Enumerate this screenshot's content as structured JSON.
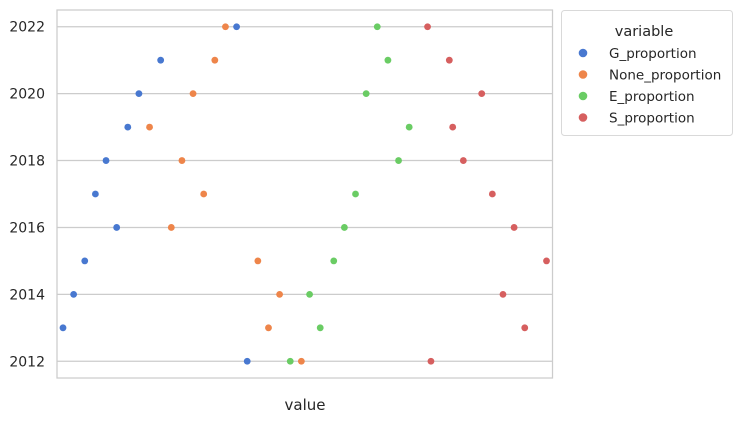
{
  "chart_data": {
    "type": "scatter",
    "xlabel": "value",
    "ylabel": "",
    "x_ticks_visible": false,
    "ylim": [
      2011.5,
      2022.5
    ],
    "yticks": [
      2012,
      2014,
      2016,
      2018,
      2020,
      2022
    ],
    "grid": "horizontal",
    "legend": {
      "title": "variable",
      "placement": "outside-top-right"
    },
    "series": [
      {
        "name": "G_proportion",
        "color": "#4878d0",
        "points": [
          {
            "x": 0.0,
            "y": 2013
          },
          {
            "x": 0.022,
            "y": 2014
          },
          {
            "x": 0.045,
            "y": 2015
          },
          {
            "x": 0.111,
            "y": 2016
          },
          {
            "x": 0.067,
            "y": 2017
          },
          {
            "x": 0.089,
            "y": 2018
          },
          {
            "x": 0.134,
            "y": 2019
          },
          {
            "x": 0.157,
            "y": 2020
          },
          {
            "x": 0.202,
            "y": 2021
          },
          {
            "x": 0.359,
            "y": 2022
          },
          {
            "x": 0.381,
            "y": 2012
          }
        ]
      },
      {
        "name": "None_proportion",
        "color": "#ee854a",
        "points": [
          {
            "x": 0.425,
            "y": 2013
          },
          {
            "x": 0.448,
            "y": 2014
          },
          {
            "x": 0.403,
            "y": 2015
          },
          {
            "x": 0.224,
            "y": 2016
          },
          {
            "x": 0.291,
            "y": 2017
          },
          {
            "x": 0.246,
            "y": 2018
          },
          {
            "x": 0.179,
            "y": 2019
          },
          {
            "x": 0.269,
            "y": 2020
          },
          {
            "x": 0.314,
            "y": 2021
          },
          {
            "x": 0.336,
            "y": 2022
          },
          {
            "x": 0.493,
            "y": 2012
          }
        ]
      },
      {
        "name": "E_proportion",
        "color": "#6acc64",
        "points": [
          {
            "x": 0.532,
            "y": 2013
          },
          {
            "x": 0.51,
            "y": 2014
          },
          {
            "x": 0.56,
            "y": 2015
          },
          {
            "x": 0.582,
            "y": 2016
          },
          {
            "x": 0.605,
            "y": 2017
          },
          {
            "x": 0.694,
            "y": 2018
          },
          {
            "x": 0.716,
            "y": 2019
          },
          {
            "x": 0.627,
            "y": 2020
          },
          {
            "x": 0.672,
            "y": 2021
          },
          {
            "x": 0.65,
            "y": 2022
          },
          {
            "x": 0.47,
            "y": 2012
          }
        ]
      },
      {
        "name": "S_proportion",
        "color": "#d65f5f",
        "points": [
          {
            "x": 0.955,
            "y": 2013
          },
          {
            "x": 0.91,
            "y": 2014
          },
          {
            "x": 1.0,
            "y": 2015
          },
          {
            "x": 0.933,
            "y": 2016
          },
          {
            "x": 0.888,
            "y": 2017
          },
          {
            "x": 0.828,
            "y": 2018
          },
          {
            "x": 0.806,
            "y": 2019
          },
          {
            "x": 0.866,
            "y": 2020
          },
          {
            "x": 0.799,
            "y": 2021
          },
          {
            "x": 0.754,
            "y": 2022
          },
          {
            "x": 0.761,
            "y": 2012
          }
        ]
      }
    ]
  }
}
